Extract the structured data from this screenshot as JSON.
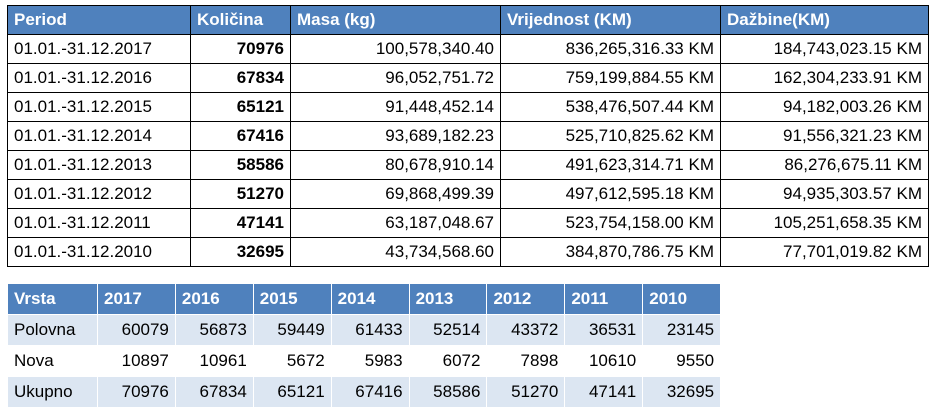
{
  "table1": {
    "header": [
      "Period",
      "Količina",
      "Masa (kg)",
      "Vrijednost (KM)",
      "Dažbine(KM)"
    ],
    "rows": [
      [
        "01.01.-31.12.2017",
        "70976",
        "100,578,340.40",
        "836,265,316.33 KM",
        "184,743,023.15 KM"
      ],
      [
        "01.01.-31.12.2016",
        "67834",
        "96,052,751.72",
        "759,199,884.55 KM",
        "162,304,233.91 KM"
      ],
      [
        "01.01.-31.12.2015",
        "65121",
        "91,448,452.14",
        "538,476,507.44 KM",
        "94,182,003.26 KM"
      ],
      [
        "01.01.-31.12.2014",
        "67416",
        "93,689,182.23",
        "525,710,825.62 KM",
        "91,556,321.23 KM"
      ],
      [
        "01.01.-31.12.2013",
        "58586",
        "80,678,910.14",
        "491,623,314.71 KM",
        "86,276,675.11 KM"
      ],
      [
        "01.01.-31.12.2012",
        "51270",
        "69,868,499.39",
        "497,612,595.18 KM",
        "94,935,303.57 KM"
      ],
      [
        "01.01.-31.12.2011",
        "47141",
        "63,187,048.67",
        "523,754,158.00 KM",
        "105,251,658.35 KM"
      ],
      [
        "01.01.-31.12.2010",
        "32695",
        "43,734,568.60",
        "384,870,786.75 KM",
        "77,701,019.82 KM"
      ]
    ]
  },
  "table2": {
    "header": [
      "Vrsta",
      "2017",
      "2016",
      "2015",
      "2014",
      "2013",
      "2012",
      "2011",
      "2010"
    ],
    "rows": [
      [
        "Polovna",
        "60079",
        "56873",
        "59449",
        "61433",
        "52514",
        "43372",
        "36531",
        "23145"
      ],
      [
        "Nova",
        "10897",
        "10961",
        "5672",
        "5983",
        "6072",
        "7898",
        "10610",
        "9550"
      ],
      [
        "Ukupno",
        "70976",
        "67834",
        "65121",
        "67416",
        "58586",
        "51270",
        "47141",
        "32695"
      ]
    ]
  }
}
